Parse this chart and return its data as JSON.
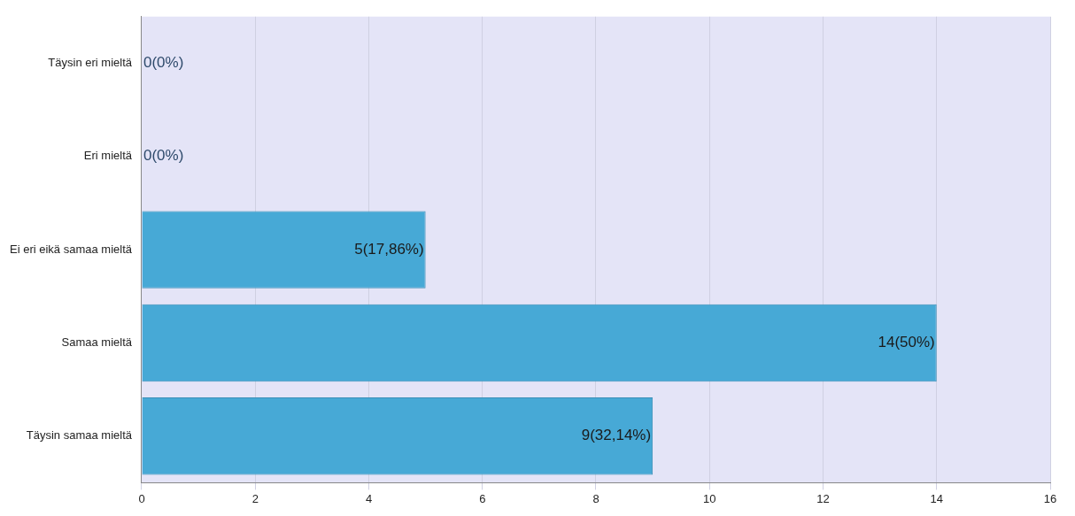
{
  "chart_data": {
    "type": "bar",
    "orientation": "horizontal",
    "categories": [
      "Täysin eri mieltä",
      "Eri mieltä",
      "Ei eri eikä samaa mieltä",
      "Samaa mieltä",
      "Täysin samaa mieltä"
    ],
    "values": [
      0,
      0,
      5,
      14,
      9
    ],
    "value_labels": [
      "0(0%)",
      "0(0%)",
      "5(17,86%)",
      "14(50%)",
      "9(32,14%)"
    ],
    "color": "#47a9d6",
    "xlim": [
      0,
      16
    ],
    "xticks": [
      0,
      2,
      4,
      6,
      8,
      10,
      12,
      14,
      16
    ],
    "grid": "x",
    "legend": false
  }
}
